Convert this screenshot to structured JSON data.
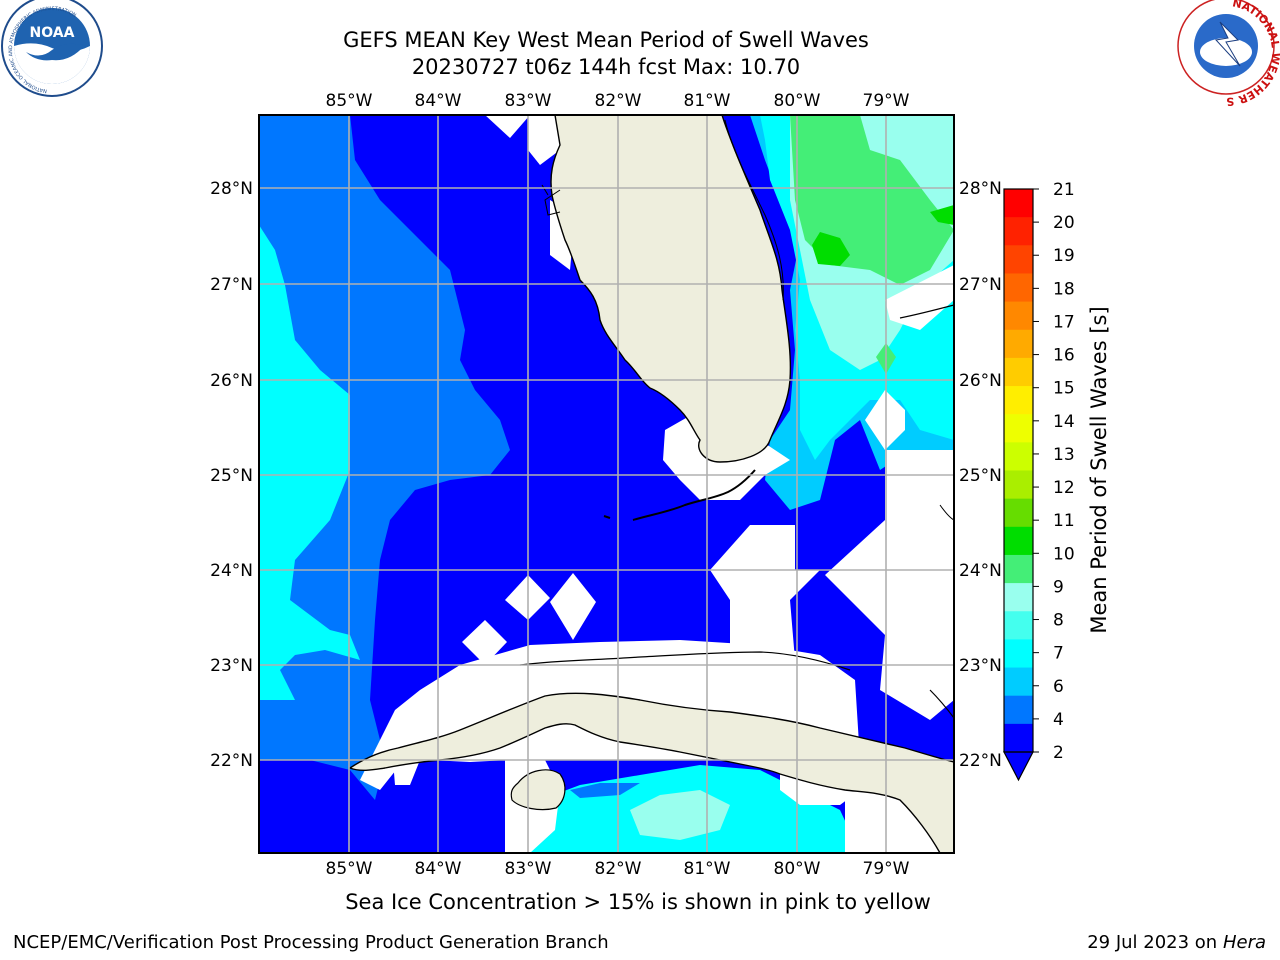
{
  "title_line1": "GEFS MEAN Key West Mean Period of Swell Waves",
  "title_line2": "20230727 t06z 144h fcst   Max: 10.70",
  "map": {
    "lon_ticks": [
      "85°W",
      "84°W",
      "83°W",
      "82°W",
      "81°W",
      "80°W",
      "79°W"
    ],
    "lat_ticks": [
      "28°N",
      "27°N",
      "26°N",
      "25°N",
      "24°N",
      "23°N",
      "22°N"
    ],
    "land_color": "#eeeedd",
    "grid_color": "#b0b0b0"
  },
  "colorbar": {
    "label": "Mean Period of Swell Waves [s]",
    "ticks": [
      "21",
      "20",
      "19",
      "18",
      "17",
      "16",
      "15",
      "14",
      "13",
      "12",
      "11",
      "10",
      "9",
      "8",
      "7",
      "6",
      "4",
      "2"
    ],
    "colors": [
      "#ff0000",
      "#ff2200",
      "#ff4400",
      "#ff6600",
      "#ff8800",
      "#ffaa00",
      "#ffcc00",
      "#ffee00",
      "#eeff00",
      "#ccff00",
      "#aaee00",
      "#66dd00",
      "#00dd00",
      "#44ee77",
      "#99ffee",
      "#44ffee",
      "#00ffff",
      "#00ccff",
      "#0077ff",
      "#0000ff"
    ]
  },
  "caption": "Sea Ice Concentration > 15% is shown in pink to yellow",
  "footer": {
    "credit": "NCEP/EMC/Verification Post Processing Product Generation Branch",
    "date": "29 Jul 2023 on ",
    "machine": "Hera"
  },
  "logos": {
    "noaa_text": "NOAA",
    "nws_ring": "NATIONAL WEATHER SERVICE",
    "noaa_ring": "NATIONAL OCEANIC AND ATMOSPHERIC ADMINISTRATION"
  }
}
